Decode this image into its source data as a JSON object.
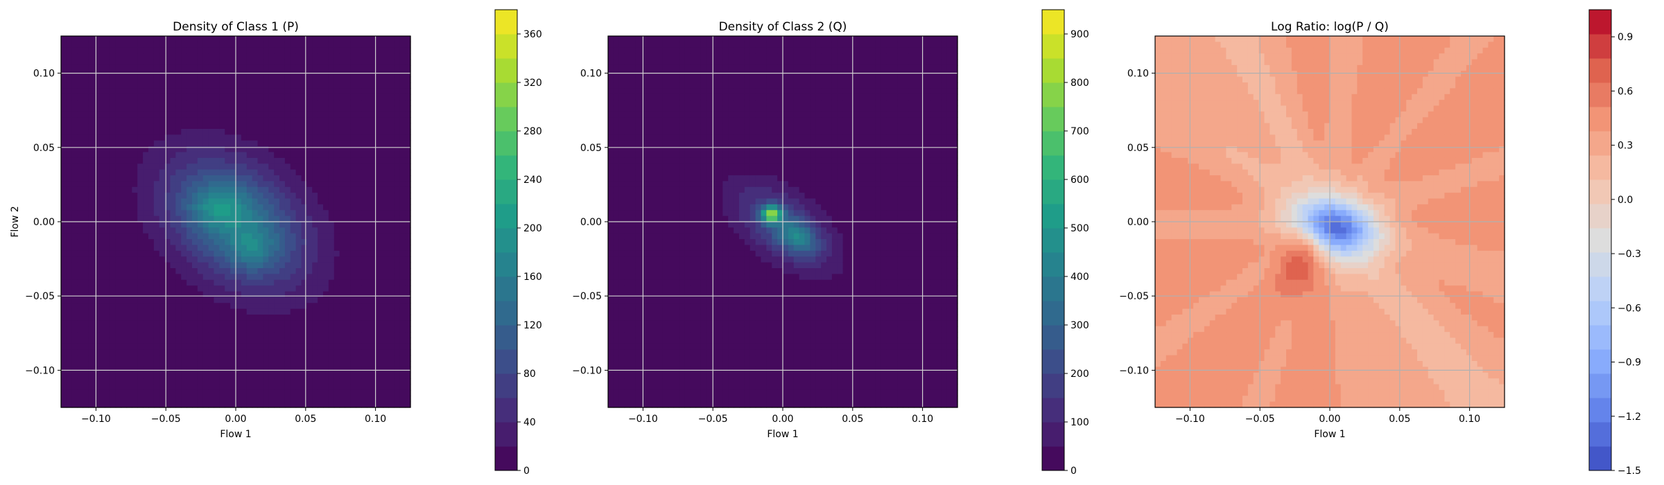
{
  "chart_data": [
    {
      "type": "heatmap",
      "title": "Density of Class 1 (P)",
      "xlabel": "Flow 1",
      "ylabel": "Flow 2",
      "xlim": [
        -0.125,
        0.125
      ],
      "ylim": [
        -0.125,
        0.125
      ],
      "xticks": [
        -0.1,
        -0.05,
        0.0,
        0.05,
        0.1
      ],
      "yticks": [
        -0.1,
        -0.05,
        0.0,
        0.05,
        0.1
      ],
      "xtick_labels": [
        "−0.10",
        "−0.05",
        "0.00",
        "0.05",
        "0.10"
      ],
      "ytick_labels": [
        "−0.10",
        "−0.05",
        "0.00",
        "0.05",
        "0.10"
      ],
      "grid": true,
      "colormap": "viridis",
      "colorbar": {
        "min": 0,
        "max": 380,
        "ticks": [
          0,
          40,
          80,
          120,
          160,
          200,
          240,
          280,
          320,
          360
        ],
        "tick_labels": [
          "0",
          "40",
          "80",
          "120",
          "160",
          "200",
          "240",
          "280",
          "320",
          "360"
        ]
      },
      "density_blobs": [
        {
          "cx": 0.0,
          "cy": 0.0,
          "sx": 0.036,
          "sy": 0.031,
          "rho": -0.35,
          "amp": 150
        },
        {
          "cx": -0.012,
          "cy": 0.01,
          "sx": 0.014,
          "sy": 0.01,
          "rho": 0.0,
          "amp": 70
        },
        {
          "cx": 0.012,
          "cy": -0.018,
          "sx": 0.012,
          "sy": 0.01,
          "rho": 0.0,
          "amp": 55
        }
      ]
    },
    {
      "type": "heatmap",
      "title": "Density of Class 2 (Q)",
      "xlabel": "Flow 1",
      "ylabel": "",
      "xlim": [
        -0.125,
        0.125
      ],
      "ylim": [
        -0.125,
        0.125
      ],
      "xticks": [
        -0.1,
        -0.05,
        0.0,
        0.05,
        0.1
      ],
      "yticks": [
        -0.1,
        -0.05,
        0.0,
        0.05,
        0.1
      ],
      "xtick_labels": [
        "−0.10",
        "−0.05",
        "0.00",
        "0.05",
        "0.10"
      ],
      "ytick_labels": [
        "−0.10",
        "−0.05",
        "0.00",
        "0.05",
        "0.10"
      ],
      "grid": true,
      "colormap": "viridis",
      "colorbar": {
        "min": 0,
        "max": 950,
        "ticks": [
          0,
          100,
          200,
          300,
          400,
          500,
          600,
          700,
          800,
          900
        ],
        "tick_labels": [
          "0",
          "100",
          "200",
          "300",
          "400",
          "500",
          "600",
          "700",
          "800",
          "900"
        ]
      },
      "density_blobs": [
        {
          "cx": 0.0,
          "cy": -0.003,
          "sx": 0.026,
          "sy": 0.021,
          "rho": -0.55,
          "amp": 220
        },
        {
          "cx": -0.008,
          "cy": 0.005,
          "sx": 0.005,
          "sy": 0.004,
          "rho": 0.0,
          "amp": 620
        },
        {
          "cx": 0.01,
          "cy": -0.01,
          "sx": 0.01,
          "sy": 0.008,
          "rho": -0.3,
          "amp": 250
        }
      ]
    },
    {
      "type": "heatmap",
      "title": "Log Ratio: log(P / Q)",
      "xlabel": "Flow 1",
      "ylabel": "",
      "xlim": [
        -0.125,
        0.125
      ],
      "ylim": [
        -0.125,
        0.125
      ],
      "xticks": [
        -0.1,
        -0.05,
        0.0,
        0.05,
        0.1
      ],
      "yticks": [
        -0.1,
        -0.05,
        0.0,
        0.05,
        0.1
      ],
      "xtick_labels": [
        "−0.10",
        "−0.05",
        "0.00",
        "0.05",
        "0.10"
      ],
      "ytick_labels": [
        "−0.10",
        "−0.05",
        "0.00",
        "0.05",
        "0.10"
      ],
      "grid": true,
      "colormap": "coolwarm",
      "colorbar": {
        "min": -1.5,
        "max": 1.05,
        "ticks": [
          -1.5,
          -1.2,
          -0.9,
          -0.6,
          -0.3,
          0.0,
          0.3,
          0.6,
          0.9
        ],
        "tick_labels": [
          "−1.5",
          "−1.2",
          "−0.9",
          "−0.6",
          "−0.3",
          "0.0",
          "0.3",
          "0.6",
          "0.9"
        ]
      },
      "ratio_features": {
        "background": 0.42,
        "light_band_value": 0.25,
        "blue_center": {
          "cx": 0.003,
          "cy": -0.004,
          "sx": 0.02,
          "sy": 0.013,
          "rho": -0.2,
          "min": -1.35
        },
        "red_lobe": {
          "cx": -0.022,
          "cy": -0.03,
          "sx": 0.012,
          "sy": 0.016,
          "rho": 0.0,
          "max": 0.78
        }
      }
    }
  ]
}
